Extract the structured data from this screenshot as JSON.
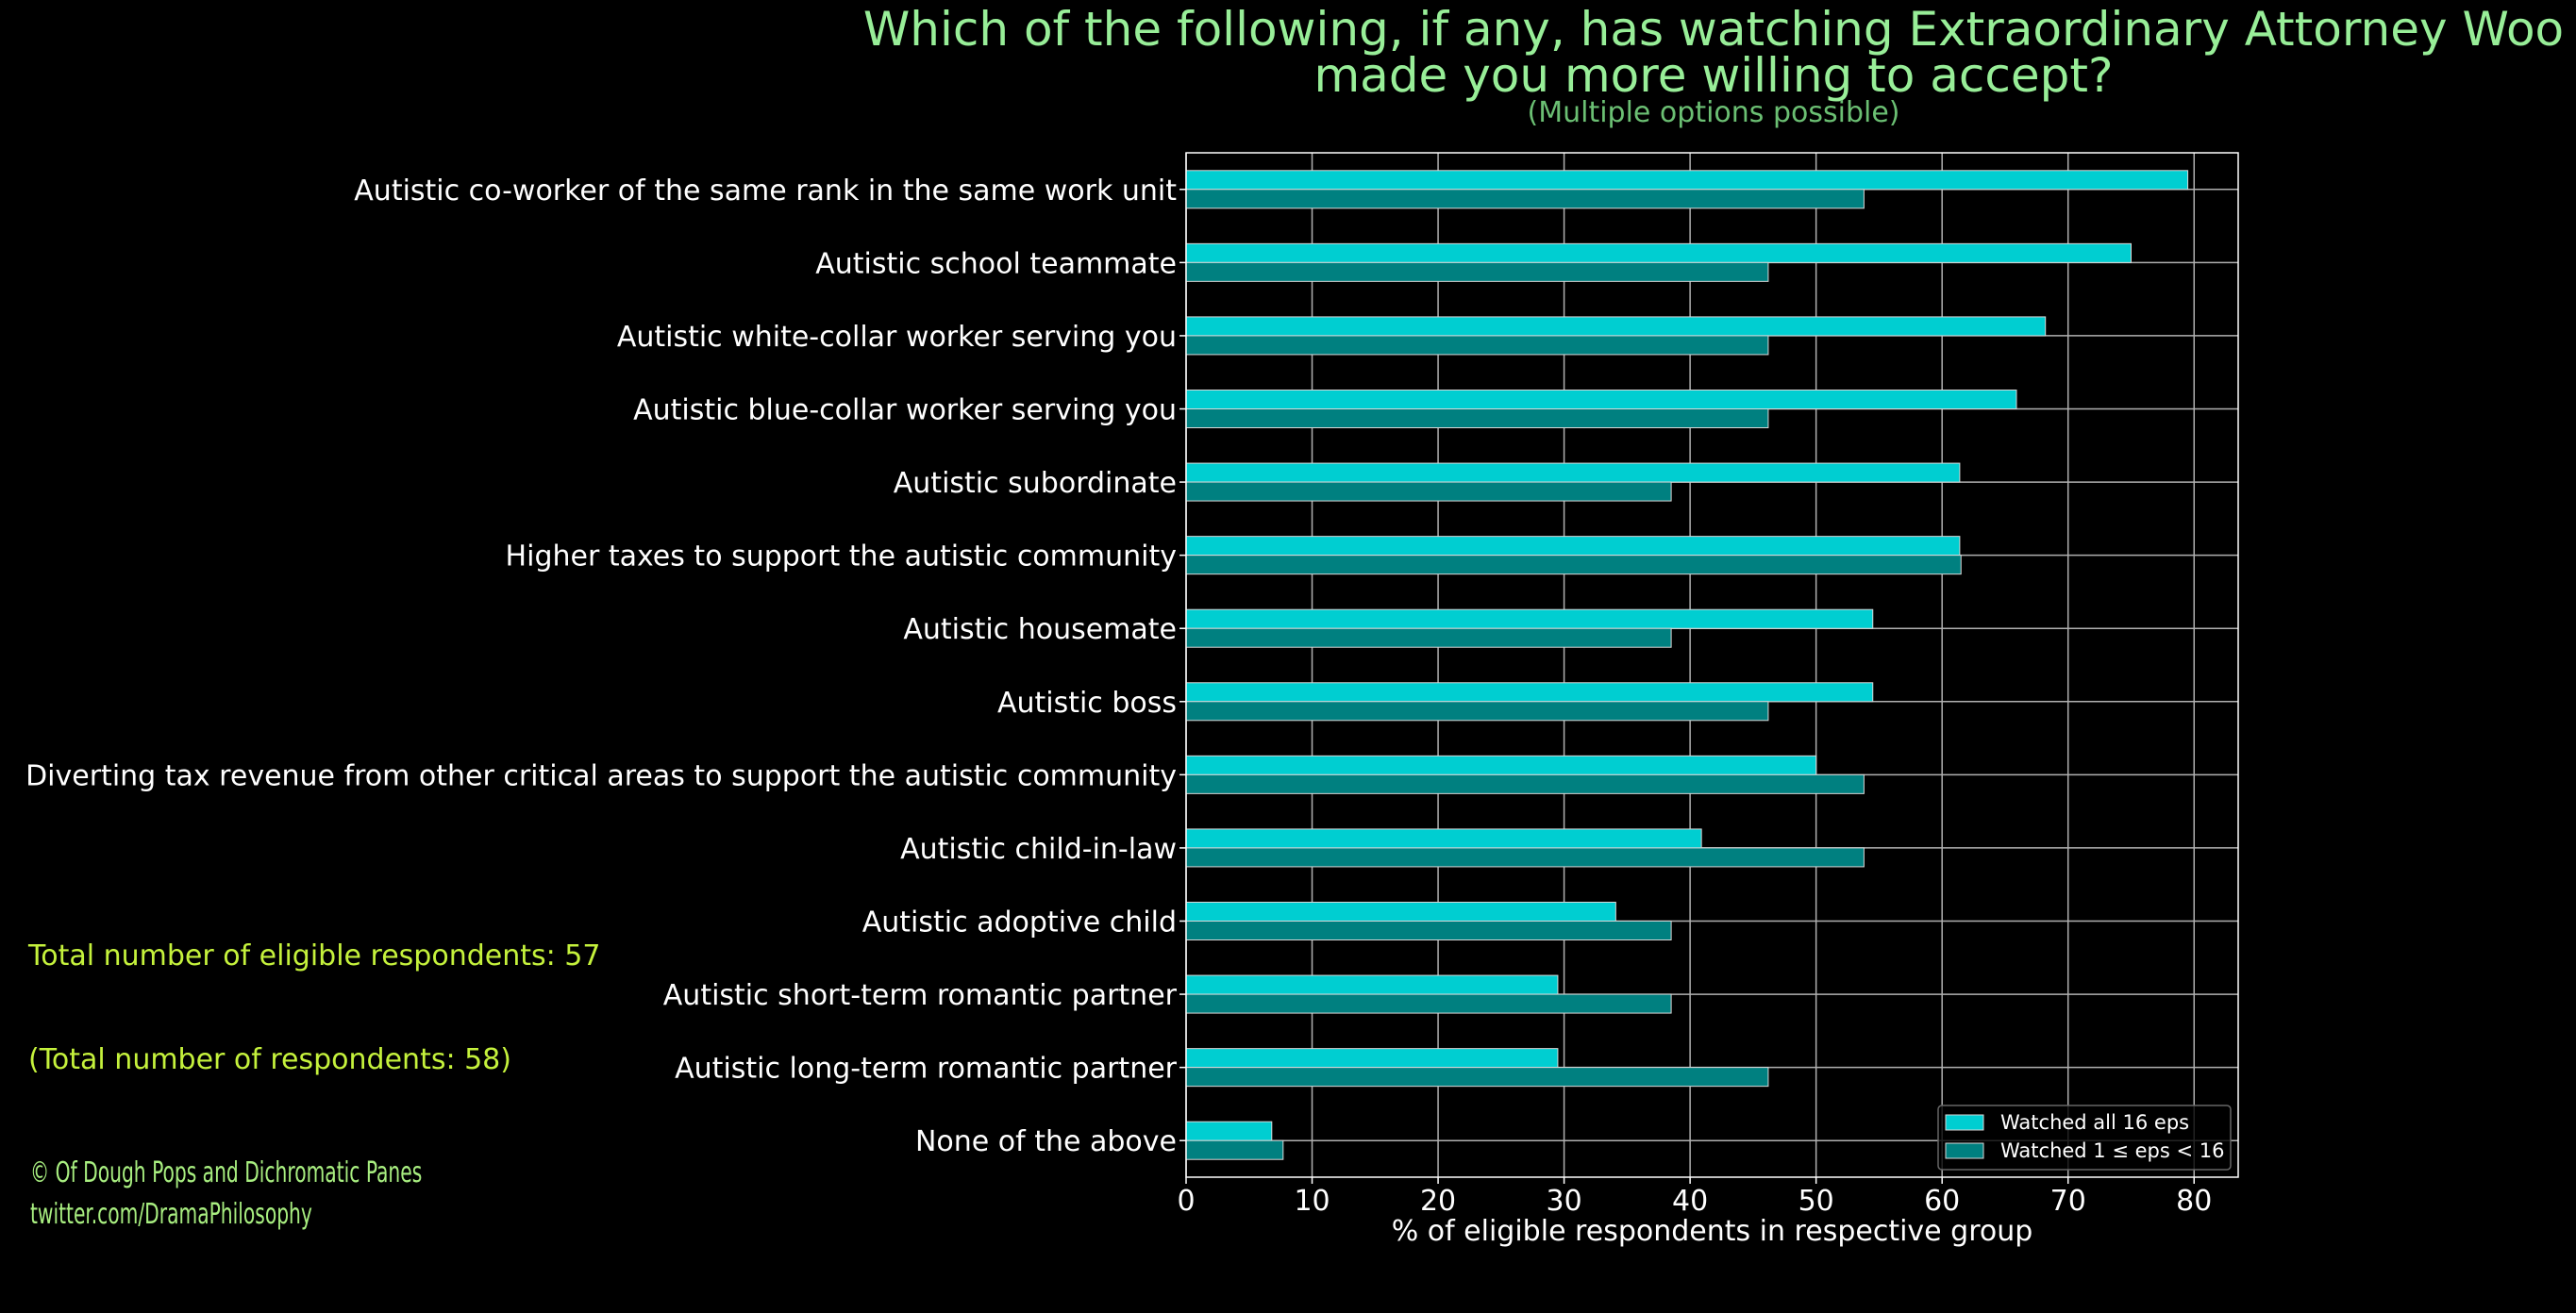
{
  "title_line1": "Which of the following, if any, has watching Extraordinary Attorney Woo",
  "title_line2": "made you more willing to accept?",
  "subtitle": "(Multiple options possible)",
  "notes": {
    "eligible": "Total number of eligible respondents: 57",
    "total": "(Total number of respondents: 58)"
  },
  "credit": {
    "line1": "© Of Dough Pops and Dichromatic Panes",
    "line2": "twitter.com/DramaPhilosophy"
  },
  "colors": {
    "background": "#000000",
    "series1": "#00ced1",
    "series2": "#008080",
    "title": "#98ee98",
    "notes": "#c5f23c"
  },
  "chart_data": {
    "type": "bar",
    "orientation": "horizontal",
    "title": "Which of the following, if any, has watching Extraordinary Attorney Woo made you more willing to accept?",
    "subtitle": "(Multiple options possible)",
    "xlabel": "% of eligible respondents in respective group",
    "ylabel": "",
    "xlim": [
      0,
      83.5
    ],
    "xticks": [
      0,
      10,
      20,
      30,
      40,
      50,
      60,
      70,
      80
    ],
    "grid": true,
    "legend_position": "bottom-right",
    "categories": [
      "Autistic co-worker of the same rank in the same work unit",
      "Autistic school teammate",
      "Autistic white-collar worker serving you",
      "Autistic blue-collar worker serving you",
      "Autistic subordinate",
      "Higher taxes to support the autistic community",
      "Autistic housemate",
      "Autistic boss",
      "Diverting tax revenue from other critical areas to support the autistic community",
      "Autistic child-in-law",
      "Autistic adoptive child",
      "Autistic short-term romantic partner",
      "Autistic long-term romantic partner",
      "None of the above"
    ],
    "series": [
      {
        "name": "Watched all 16 eps",
        "color": "#00ced1",
        "values": [
          79.5,
          75.0,
          68.2,
          65.9,
          61.4,
          61.4,
          54.5,
          54.5,
          50.0,
          40.9,
          34.1,
          29.5,
          29.5,
          6.8
        ]
      },
      {
        "name": "Watched 1 ≤ eps < 16",
        "color": "#008080",
        "values": [
          53.8,
          46.2,
          46.2,
          46.2,
          38.5,
          61.5,
          38.5,
          46.2,
          53.8,
          53.8,
          38.5,
          38.5,
          46.2,
          7.7
        ]
      }
    ]
  }
}
